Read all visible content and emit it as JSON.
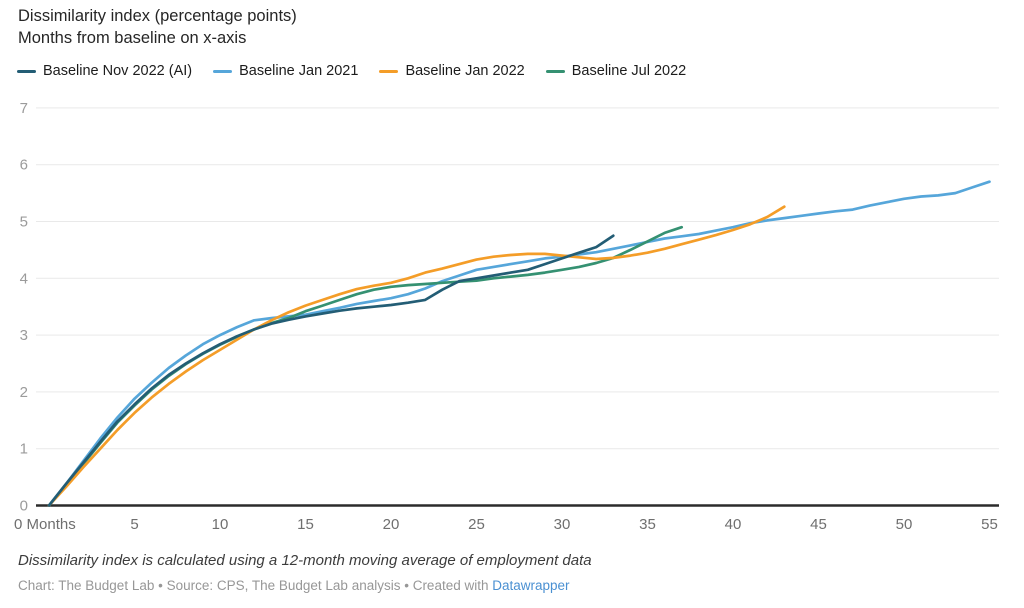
{
  "header": {
    "title": "Dissimilarity index (percentage points)",
    "subtitle": "Months from baseline on x-axis"
  },
  "chart_data": {
    "type": "line",
    "title": "Dissimilarity index (percentage points)",
    "subtitle": "Months from baseline on x-axis",
    "xlabel": "Months from baseline",
    "ylabel": "Dissimilarity index (percentage points)",
    "xlim": [
      0,
      55.5
    ],
    "ylim": [
      0,
      7
    ],
    "grid": "horizontal",
    "legend_position": "top",
    "x_ticks": [
      0,
      5,
      10,
      15,
      20,
      25,
      30,
      35,
      40,
      45,
      50,
      55
    ],
    "x_tick_labels": [
      "0 Months",
      "5",
      "10",
      "15",
      "20",
      "25",
      "30",
      "35",
      "40",
      "45",
      "50",
      "55"
    ],
    "y_ticks": [
      0,
      1,
      2,
      3,
      4,
      5,
      6,
      7
    ],
    "series": [
      {
        "id": "nov-2022-ai",
        "name": "Baseline Nov 2022 (AI)",
        "color": "#235D75",
        "x_start": 0,
        "x_step": 1,
        "values": [
          0,
          0.38,
          0.75,
          1.12,
          1.48,
          1.78,
          2.06,
          2.3,
          2.5,
          2.68,
          2.84,
          2.98,
          3.1,
          3.2,
          3.27,
          3.33,
          3.38,
          3.43,
          3.47,
          3.5,
          3.53,
          3.57,
          3.62,
          3.8,
          3.95,
          4.0,
          4.05,
          4.1,
          4.15,
          4.25,
          4.35,
          4.45,
          4.55,
          4.75
        ]
      },
      {
        "id": "jan-2021",
        "name": "Baseline Jan 2021",
        "color": "#56A6DA",
        "x_start": 0,
        "x_step": 1,
        "values": [
          0,
          0.38,
          0.78,
          1.18,
          1.55,
          1.88,
          2.16,
          2.42,
          2.64,
          2.84,
          3.0,
          3.14,
          3.26,
          3.3,
          3.33,
          3.36,
          3.42,
          3.48,
          3.55,
          3.6,
          3.65,
          3.72,
          3.82,
          3.95,
          4.05,
          4.15,
          4.2,
          4.25,
          4.3,
          4.35,
          4.38,
          4.42,
          4.46,
          4.52,
          4.58,
          4.64,
          4.7,
          4.74,
          4.78,
          4.84,
          4.9,
          4.97,
          5.02,
          5.06,
          5.1,
          5.14,
          5.18,
          5.21,
          5.28,
          5.34,
          5.4,
          5.44,
          5.46,
          5.5,
          5.6,
          5.7
        ]
      },
      {
        "id": "jan-2022",
        "name": "Baseline Jan 2022",
        "color": "#F49D28",
        "x_start": 0,
        "x_step": 1,
        "values": [
          0,
          0.33,
          0.67,
          1.0,
          1.33,
          1.63,
          1.9,
          2.14,
          2.36,
          2.56,
          2.74,
          2.92,
          3.1,
          3.26,
          3.4,
          3.52,
          3.62,
          3.72,
          3.81,
          3.87,
          3.92,
          4.0,
          4.1,
          4.17,
          4.25,
          4.33,
          4.38,
          4.41,
          4.43,
          4.43,
          4.4,
          4.37,
          4.34,
          4.36,
          4.4,
          4.45,
          4.52,
          4.6,
          4.68,
          4.76,
          4.85,
          4.95,
          5.08,
          5.26
        ]
      },
      {
        "id": "jul-2022",
        "name": "Baseline Jul 2022",
        "color": "#359172",
        "x_start": 0,
        "x_step": 1,
        "values": [
          0,
          0.36,
          0.73,
          1.1,
          1.46,
          1.76,
          2.04,
          2.28,
          2.49,
          2.67,
          2.83,
          2.97,
          3.1,
          3.21,
          3.3,
          3.42,
          3.52,
          3.62,
          3.72,
          3.8,
          3.85,
          3.88,
          3.9,
          3.92,
          3.94,
          3.96,
          4.0,
          4.03,
          4.06,
          4.1,
          4.15,
          4.2,
          4.27,
          4.36,
          4.5,
          4.65,
          4.8,
          4.9
        ]
      }
    ],
    "colors": {
      "grid": "#e9e9e9",
      "zero_axis": "#2b2b2b",
      "y_tick_text": "#9b9b9b",
      "x_tick_text": "#6f6f6f"
    }
  },
  "footer": {
    "note": "Dissimilarity index is calculated using a 12-month moving average of employment data",
    "credit_prefix": "Chart: The Budget Lab • Source: CPS, The Budget Lab analysis • Created with ",
    "credit_link_label": "Datawrapper"
  }
}
